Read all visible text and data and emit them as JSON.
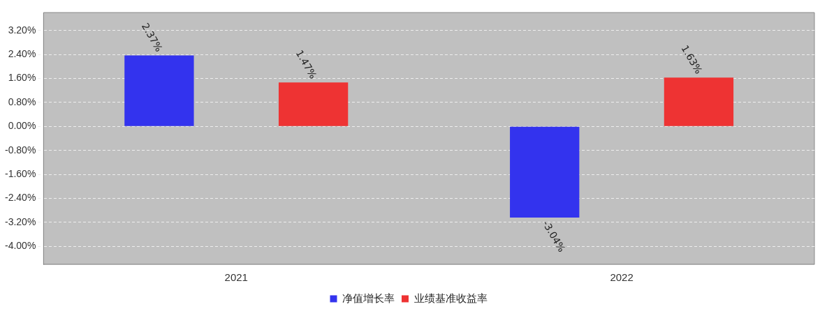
{
  "chart_data": {
    "type": "bar",
    "categories": [
      "2021",
      "2022"
    ],
    "series": [
      {
        "name": "净值增长率",
        "color": "#3333ee",
        "values": [
          2.37,
          -3.04
        ],
        "value_labels": [
          "2.37%",
          "-3.04%"
        ]
      },
      {
        "name": "业绩基准收益率",
        "color": "#ee3333",
        "values": [
          1.47,
          1.63
        ],
        "value_labels": [
          "1.47%",
          "1.63%"
        ]
      }
    ],
    "ylim": [
      -4.6,
      3.8
    ],
    "yticks": [
      {
        "value": -4,
        "label": "-4.00%"
      },
      {
        "value": -3.2,
        "label": "-3.20%"
      },
      {
        "value": -2.4,
        "label": "-2.40%"
      },
      {
        "value": -1.6,
        "label": "-1.60%"
      },
      {
        "value": -0.8,
        "label": "-0.80%"
      },
      {
        "value": 0,
        "label": "0.00%"
      },
      {
        "value": 0.8,
        "label": "0.80%"
      },
      {
        "value": 1.6,
        "label": "1.60%"
      },
      {
        "value": 2.4,
        "label": "2.40%"
      },
      {
        "value": 3.2,
        "label": "3.20%"
      }
    ],
    "grid": "y",
    "legend": "bottom"
  }
}
